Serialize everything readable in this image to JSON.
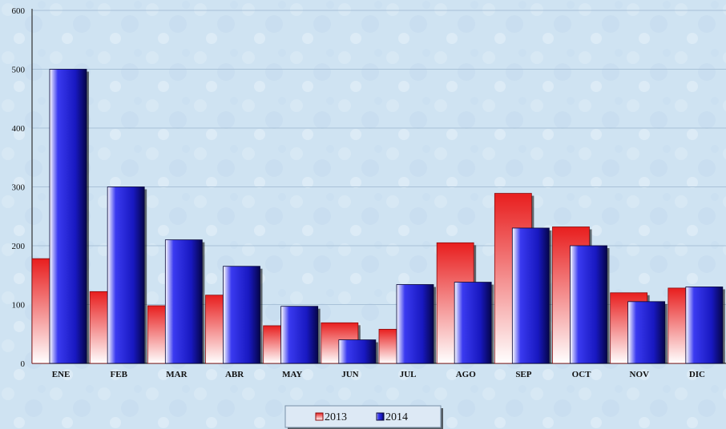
{
  "chart_data": {
    "type": "bar",
    "title": "",
    "xlabel": "",
    "ylabel": "",
    "ylim": [
      0,
      600
    ],
    "yticks": [
      0,
      100,
      200,
      300,
      400,
      500,
      600
    ],
    "grid": true,
    "legend_position": "bottom-center",
    "categories": [
      "ENE",
      "FEB",
      "MAR",
      "ABR",
      "MAY",
      "JUN",
      "JUL",
      "AGO",
      "SEP",
      "OCT",
      "NOV",
      "DIC"
    ],
    "series": [
      {
        "name": "2013",
        "color": "#e23030",
        "values": [
          178,
          122,
          98,
          116,
          64,
          69,
          58,
          205,
          289,
          232,
          120,
          128
        ]
      },
      {
        "name": "2014",
        "color": "#1c1cc8",
        "values": [
          500,
          300,
          210,
          165,
          97,
          40,
          134,
          138,
          230,
          200,
          105,
          130
        ]
      }
    ]
  }
}
